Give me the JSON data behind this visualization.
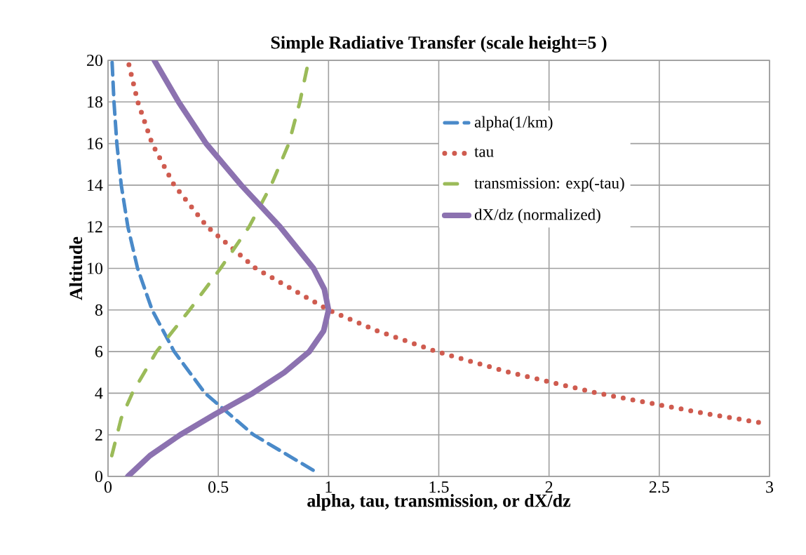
{
  "chart_data": {
    "type": "line",
    "title": "Simple Radiative Transfer (scale height=5 )",
    "xlabel": "alpha, tau, transmission, or dX/dz",
    "ylabel": "Altitude",
    "xlim": [
      0,
      3
    ],
    "ylim": [
      0,
      20
    ],
    "xticks": [
      0,
      0.5,
      1,
      1.5,
      2,
      2.5,
      3
    ],
    "yticks": [
      0,
      2,
      4,
      6,
      8,
      10,
      12,
      14,
      16,
      18,
      20
    ],
    "grid": true,
    "legend": "right",
    "marker": "none",
    "series": [
      {
        "name": "alpha(1/km)",
        "color": "#4a8ac9",
        "line_style": "dashed",
        "x": [
          0.93,
          0.66,
          0.44,
          0.3,
          0.2,
          0.134,
          0.09,
          0.06,
          0.04,
          0.027,
          0.018
        ],
        "values": [
          0.3,
          2,
          4,
          6,
          8,
          10,
          12,
          14,
          16,
          18,
          20
        ]
      },
      {
        "name": "tau",
        "color": "#cf5b4f",
        "line_style": "dotted",
        "x": [
          2.95,
          2.72,
          2.22,
          1.82,
          1.49,
          1.22,
          1.0,
          0.67,
          0.45,
          0.3,
          0.2,
          0.135,
          0.09
        ],
        "values": [
          2.6,
          3,
          4,
          5,
          6,
          7,
          8,
          10,
          12,
          14,
          16,
          18,
          20
        ]
      },
      {
        "name": "transmission: exp(-tau)",
        "color": "#9bbb59",
        "line_style": "dashdot",
        "x": [
          0.017,
          0.06,
          0.11,
          0.22,
          0.37,
          0.51,
          0.64,
          0.74,
          0.82,
          0.87,
          0.91
        ],
        "values": [
          1,
          2.8,
          4,
          6,
          8,
          10,
          12,
          14,
          16,
          18,
          20
        ]
      },
      {
        "name": "dX/dz (normalized)",
        "color": "#8c72b0",
        "line_style": "solid",
        "x": [
          0.09,
          0.19,
          0.327,
          0.487,
          0.656,
          0.8,
          0.913,
          0.978,
          1.0,
          0.981,
          0.932,
          0.78,
          0.604,
          0.445,
          0.32,
          0.21
        ],
        "values": [
          0,
          1,
          2,
          3,
          4,
          5,
          6,
          7,
          8,
          9,
          10,
          12,
          14,
          16,
          18,
          20
        ]
      }
    ]
  }
}
